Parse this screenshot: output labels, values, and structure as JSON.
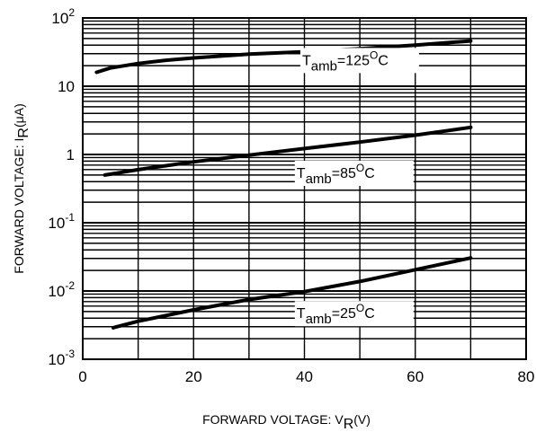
{
  "chart_data": {
    "type": "line",
    "xlabel": "FORWARD VOLTAGE: V",
    "xlabel_sub": "R",
    "xlabel_unit": "(V)",
    "ylabel": "FORWARD VOLTAGE:  I",
    "ylabel_sub": "R",
    "ylabel_unit": "(μA)",
    "xlim": [
      0,
      80
    ],
    "ylim": [
      0.001,
      100
    ],
    "yscale": "log",
    "grid": true,
    "x_ticks": [
      {
        "value": 0,
        "label": "0"
      },
      {
        "value": 20,
        "label": "20"
      },
      {
        "value": 40,
        "label": "40"
      },
      {
        "value": 60,
        "label": "60"
      },
      {
        "value": 80,
        "label": "80"
      }
    ],
    "y_ticks": [
      {
        "value": 100,
        "base": "10",
        "exp": "2"
      },
      {
        "value": 10,
        "base": "10",
        "exp": ""
      },
      {
        "value": 1,
        "base": "1",
        "exp": ""
      },
      {
        "value": 0.1,
        "base": "10",
        "exp": "-1"
      },
      {
        "value": 0.01,
        "base": "10",
        "exp": "-2"
      },
      {
        "value": 0.001,
        "base": "10",
        "exp": "-3"
      }
    ],
    "series": [
      {
        "label_main": "T",
        "label_sub": "amb",
        "label_rest": "=125",
        "label_sup": "O",
        "label_end": "C",
        "x": [
          2.5,
          5,
          10,
          15,
          20,
          30,
          40,
          50,
          60,
          70
        ],
        "y": [
          16,
          18.5,
          21.5,
          24,
          26,
          29.5,
          32,
          35.5,
          40,
          46
        ]
      },
      {
        "label_main": "T",
        "label_sub": "amb",
        "label_rest": "=85",
        "label_sup": "O",
        "label_end": "C",
        "x": [
          4,
          10,
          20,
          30,
          40,
          50,
          60,
          70
        ],
        "y": [
          0.5,
          0.6,
          0.78,
          0.98,
          1.22,
          1.52,
          1.92,
          2.5
        ]
      },
      {
        "label_main": "T",
        "label_sub": "amb",
        "label_rest": "=25",
        "label_sup": "O",
        "label_end": "C",
        "x": [
          5.5,
          10,
          20,
          30,
          40,
          50,
          60,
          70
        ],
        "y": [
          0.0029,
          0.0036,
          0.0053,
          0.0075,
          0.0098,
          0.0138,
          0.0205,
          0.0305
        ]
      }
    ]
  }
}
